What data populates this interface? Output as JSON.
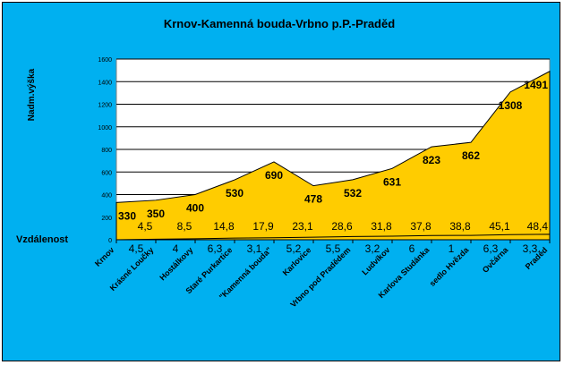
{
  "chart_data": {
    "type": "area",
    "title": "Krnov-Kamenná bouda-Vrbno p.P.-Praděd",
    "ylabel": "Nadm.výška",
    "y2label": "Vzdálenost",
    "ylim": [
      0,
      1600
    ],
    "yticks": [
      0,
      200,
      400,
      600,
      800,
      1000,
      1200,
      1400,
      1600
    ],
    "grid": true,
    "legend": "none",
    "categories": [
      "Krnov",
      "Krásné Loučky",
      "Hostálkovy",
      "Staré Purkartice",
      "\"Kamenná bouda\"",
      "Karlovice",
      "Vrbno pod Pradědem",
      "Ludvíkov",
      "Karlova Studánka",
      "sedlo Hvězda",
      "Ovčárna",
      "Praděd"
    ],
    "series": [
      {
        "values": [
          330,
          350,
          400,
          530,
          690,
          478,
          532,
          631,
          823,
          862,
          1308,
          1491
        ]
      },
      {
        "values": [
          0,
          4.5,
          8.5,
          14.8,
          17.9,
          23.1,
          28.6,
          31.8,
          37.8,
          38.8,
          45.1,
          48.4
        ]
      }
    ],
    "elevation_labels": [
      "330",
      "350",
      "400",
      "530",
      "690",
      "478",
      "532",
      "631",
      "823",
      "862",
      "1308",
      "1491"
    ],
    "cumulative_labels": [
      "4,5",
      "8,5",
      "14,8",
      "17,9",
      "23,1",
      "28,6",
      "31,8",
      "37,8",
      "38,8",
      "45,1",
      "48,4"
    ],
    "segment_labels": [
      "4,5",
      "4",
      "6,3",
      "3,1",
      "5,2",
      "5,5",
      "3,2",
      "6",
      "1",
      "6,3",
      "3,3"
    ],
    "colors": {
      "background": "#00b0f0",
      "plot": "#ffffff",
      "area": "#ffcc00"
    }
  }
}
